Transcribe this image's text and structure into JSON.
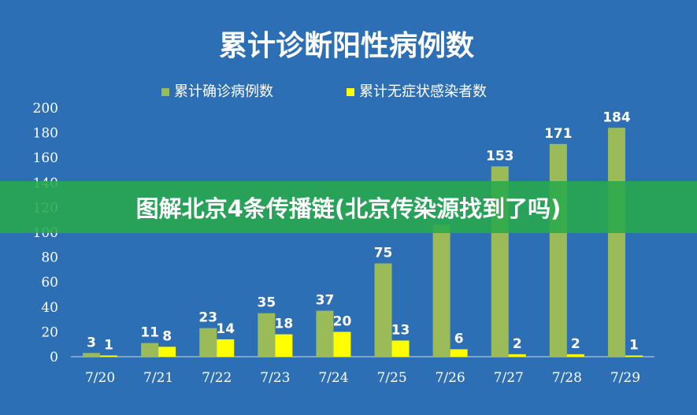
{
  "banner": {
    "text": "图解北京4条传播链(北京传染源找到了吗)"
  },
  "colors": {
    "background": "#2d6fb5",
    "confirmed": "#9bbb59",
    "asymptomatic": "#ffff00",
    "banner": "#28aa4b"
  },
  "chart_data": {
    "type": "bar",
    "title": "累计诊断阳性病例数",
    "categories": [
      "7/20",
      "7/21",
      "7/22",
      "7/23",
      "7/24",
      "7/25",
      "7/26",
      "7/27",
      "7/28",
      "7/29"
    ],
    "series": [
      {
        "name": "累计确诊病例数",
        "values": [
          3,
          11,
          23,
          35,
          37,
          75,
          106,
          153,
          171,
          184
        ],
        "labels": [
          "3",
          "11",
          "23",
          "35",
          "37",
          "75",
          "",
          "153",
          "171",
          "184"
        ]
      },
      {
        "name": "累计无症状感染者数",
        "values": [
          1,
          8,
          14,
          18,
          20,
          13,
          6,
          2,
          2,
          1
        ],
        "labels": [
          "1",
          "8",
          "14",
          "18",
          "20",
          "13",
          "6",
          "2",
          "2",
          "1"
        ]
      }
    ],
    "ylim": [
      0,
      200
    ],
    "yticks": [
      "0",
      "20",
      "40",
      "60",
      "80",
      "100",
      "120",
      "140",
      "160",
      "180",
      "200"
    ],
    "legend": "top",
    "grid": false
  }
}
